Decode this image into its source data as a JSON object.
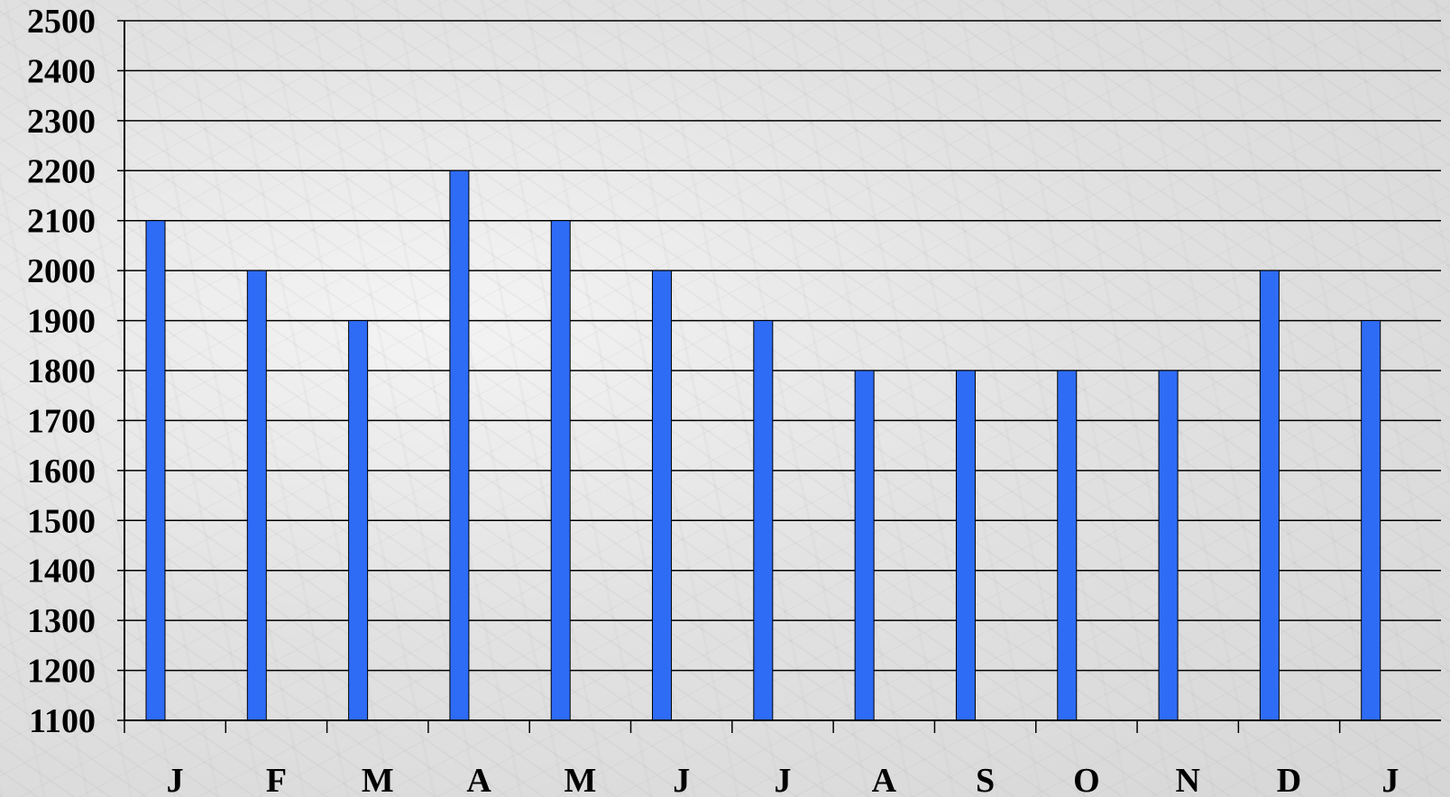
{
  "chart_data": {
    "type": "bar",
    "title": "",
    "xlabel": "",
    "ylabel": "",
    "categories": [
      "J",
      "F",
      "M",
      "A",
      "M",
      "J",
      "J",
      "A",
      "S",
      "O",
      "N",
      "D",
      "J"
    ],
    "values": [
      2100,
      2000,
      1900,
      2200,
      2100,
      2000,
      1900,
      1800,
      1800,
      1800,
      1800,
      2000,
      1900
    ],
    "ylim": [
      1100,
      2500
    ],
    "yticks": [
      "1100",
      "1200",
      "1300",
      "1400",
      "1500",
      "1600",
      "1700",
      "1800",
      "1900",
      "2000",
      "2100",
      "2200",
      "2300",
      "2400",
      "2500"
    ],
    "grid": true,
    "legend": "none",
    "bar_color": "#2E6CF6",
    "bar_outline_color": "#000000",
    "grid_color": "#000000",
    "background": "grey marble texture"
  }
}
